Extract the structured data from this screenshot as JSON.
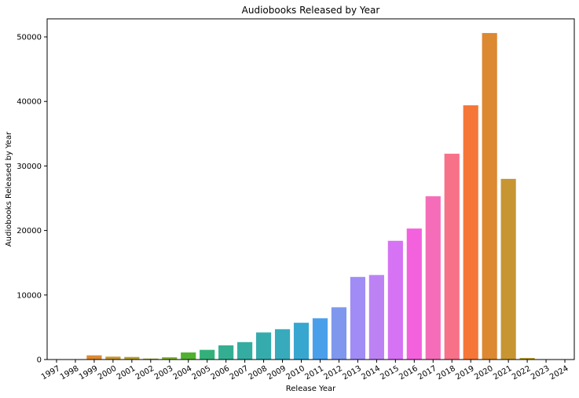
{
  "chart_data": {
    "type": "bar",
    "title": "Audiobooks Released by Year",
    "xlabel": "Release Year",
    "ylabel": "Audiobooks Released by Year",
    "ylim": [
      0,
      52800
    ],
    "yticks": [
      0,
      10000,
      20000,
      30000,
      40000,
      50000
    ],
    "grid": false,
    "legend": "none",
    "categories": [
      "1997",
      "1998",
      "1999",
      "2000",
      "2001",
      "2002",
      "2003",
      "2004",
      "2005",
      "2006",
      "2007",
      "2008",
      "2009",
      "2010",
      "2011",
      "2012",
      "2013",
      "2014",
      "2015",
      "2016",
      "2017",
      "2018",
      "2019",
      "2020",
      "2021",
      "2022",
      "2023",
      "2024"
    ],
    "values": [
      20,
      30,
      650,
      450,
      400,
      150,
      350,
      1100,
      1500,
      2200,
      2700,
      4200,
      4700,
      5700,
      6400,
      8100,
      12800,
      13100,
      18400,
      20300,
      25300,
      31900,
      39400,
      50600,
      28000,
      250,
      20,
      10
    ],
    "colors": [
      "#f77189",
      "#f57636",
      "#dc8932",
      "#c79632",
      "#b59f31",
      "#a0a731",
      "#7fb031",
      "#50b131",
      "#33b07a",
      "#34ae91",
      "#35aca1",
      "#36abad",
      "#37aabb",
      "#38a7d0",
      "#4a9fea",
      "#7f98ed",
      "#a08cf4",
      "#bc82f4",
      "#d672f4",
      "#f461dd",
      "#f56db8"
    ]
  }
}
